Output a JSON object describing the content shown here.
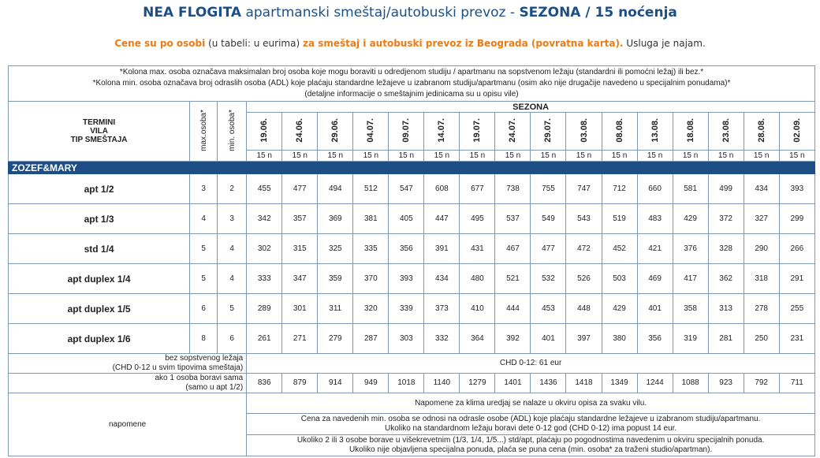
{
  "header": {
    "title_bold": "NEA FLOGITA",
    "title_rest": "apartmanski smeštaj/autobuski prevoz -",
    "title_season": "SEZONA / 15 noćenja",
    "subtitle_orange1": "Cene su po osobi",
    "subtitle_plain1": "(u tabeli: u eurima)",
    "subtitle_orange2": "za smeštaj i autobuski prevoz iz Beograda (povratna karta).",
    "subtitle_plain2": "Usluga je najam."
  },
  "notes": {
    "line1": "*Kolona max. osoba označava maksimalan broj osoba koje mogu boraviti u odredjenom studiju / apartmanu na sopstvenom ležaju (standardni ili pomoćni ležaj) ili bez.*",
    "line2": "*Kolona min. osoba označava broj odraslih osoba (ADL) koje plaćaju standardne ležajeve u izabranom studiju/apartmanu (osim ako nije drugačije navedeno u specijalnim ponudama)*",
    "line3": "(detaljne informacije o smeštajnim jedinicama su u opisu vile)"
  },
  "table": {
    "col_header": [
      "TERMINI",
      "VILA",
      "TIP SMEŠTAJA"
    ],
    "max_label": "max.osoba*",
    "min_label": "min. osoba*",
    "season_label": "SEZONA",
    "dates": [
      "19.06.",
      "24.06.",
      "29.06.",
      "04.07.",
      "09.07.",
      "14.07.",
      "19.07.",
      "24.07.",
      "29.07.",
      "03.08.",
      "08.08.",
      "13.08.",
      "18.08.",
      "23.08.",
      "28.08.",
      "02.09."
    ],
    "nights": "15 n",
    "section": "ZOZEF&MARY",
    "rows": [
      {
        "name": "apt 1/2",
        "max": "3",
        "min": "2",
        "prices": [
          "455",
          "477",
          "494",
          "512",
          "547",
          "608",
          "677",
          "738",
          "755",
          "747",
          "712",
          "660",
          "581",
          "499",
          "434",
          "393"
        ]
      },
      {
        "name": "apt 1/3",
        "max": "4",
        "min": "3",
        "prices": [
          "342",
          "357",
          "369",
          "381",
          "405",
          "447",
          "495",
          "537",
          "549",
          "543",
          "519",
          "483",
          "429",
          "372",
          "327",
          "299"
        ]
      },
      {
        "name": "std 1/4",
        "max": "5",
        "min": "4",
        "prices": [
          "302",
          "315",
          "325",
          "335",
          "356",
          "391",
          "431",
          "467",
          "477",
          "472",
          "452",
          "421",
          "376",
          "328",
          "290",
          "266"
        ]
      },
      {
        "name": "apt duplex 1/4",
        "max": "5",
        "min": "4",
        "prices": [
          "333",
          "347",
          "359",
          "370",
          "393",
          "434",
          "480",
          "521",
          "532",
          "526",
          "503",
          "469",
          "417",
          "362",
          "318",
          "291"
        ]
      },
      {
        "name": "apt duplex 1/5",
        "max": "6",
        "min": "5",
        "prices": [
          "289",
          "301",
          "311",
          "320",
          "339",
          "373",
          "410",
          "444",
          "453",
          "448",
          "429",
          "401",
          "358",
          "313",
          "278",
          "255"
        ]
      },
      {
        "name": "apt duplex 1/6",
        "max": "8",
        "min": "6",
        "prices": [
          "261",
          "271",
          "279",
          "287",
          "303",
          "332",
          "364",
          "392",
          "401",
          "397",
          "380",
          "356",
          "319",
          "281",
          "250",
          "231"
        ]
      }
    ],
    "no_bed": {
      "label1": "bez sopstvenog ležaja",
      "label2": "(CHD 0-12 u svim tipovima smeštaja)",
      "value": "CHD 0-12: 61 eur"
    },
    "single": {
      "label1": "ako 1 osoba boravi sama",
      "label2": "(samo u apt 1/2)",
      "prices": [
        "836",
        "879",
        "914",
        "949",
        "1018",
        "1140",
        "1279",
        "1401",
        "1436",
        "1418",
        "1349",
        "1244",
        "1088",
        "923",
        "792",
        "711"
      ]
    },
    "napomene": {
      "label": "napomene",
      "line1": "Napomene za klima uredjaj se nalaze u okviru opisa za svaku vilu.",
      "line2a": "Cena za  navedenih min. osoba se odnosi na odrasle osobe (ADL) koje plaćaju standardne ležajeve u izabranom studiju/apartmanu.",
      "line2b": "Ukoliko na standardnom ležaju boravi dete 0-12 god (CHD 0-12) ima popust 14 eur.",
      "line3a": "Ukoliko 2 ili 3 osobe borave u višekrevetnim (1/3, 1/4, 1/5...) std/apt, plaćaju po pogodnostima navedenim u okviru specijalnih ponuda.",
      "line3b": "Ukoliko nije objavljena specijalna ponuda, plaća se puna cena (min. osoba* za traženi studio/apartman)."
    }
  }
}
